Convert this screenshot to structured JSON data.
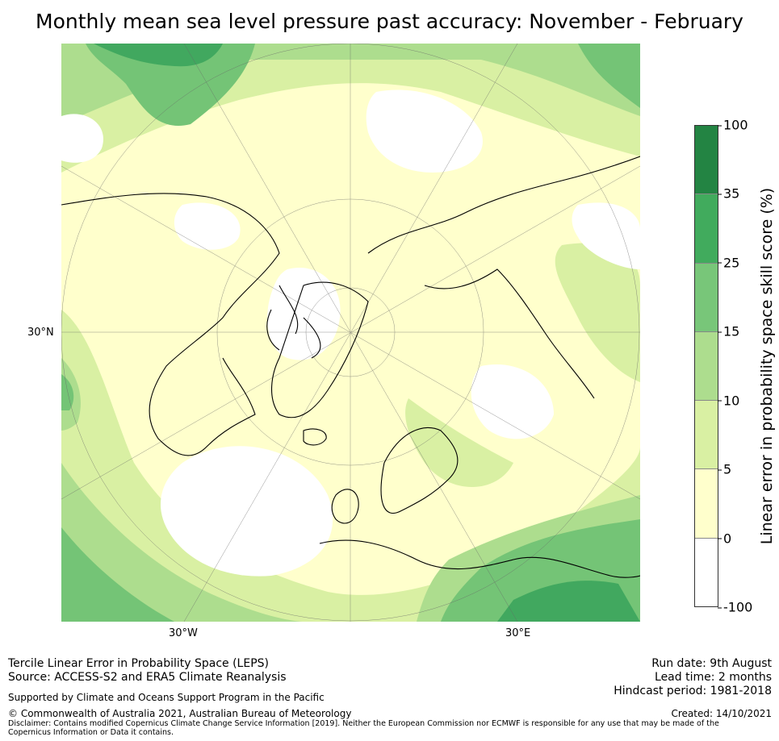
{
  "title": "Monthly mean sea level pressure past accuracy: November - February",
  "map": {
    "projection": "north-polar-stereographic",
    "labels": {
      "lat_30n": "30°N",
      "lon_30w": "30°W",
      "lon_30e": "30°E"
    },
    "colors": {
      "ocean_green_dark": "#41a85f",
      "green_mid": "#74c476",
      "green_light": "#addd8e",
      "green_pale": "#d9f0a3",
      "yellow_pale": "#ffffcc",
      "white": "#ffffff",
      "coast": "#000000"
    }
  },
  "colorbar": {
    "label": "Linear error in probability space skill score (%)",
    "ticks": [
      "100",
      "35",
      "25",
      "15",
      "10",
      "5",
      "0",
      "-100"
    ],
    "colors": [
      "#238443",
      "#41ab5d",
      "#78c679",
      "#addd8e",
      "#d9f0a3",
      "#ffffcc",
      "#ffffff"
    ]
  },
  "footer": {
    "line1": "Tercile Linear Error in Probability Space (LEPS)",
    "line2": "Source: ACCESS-S2 and ERA5 Climate Reanalysis",
    "supported": "Supported by Climate and Oceans Support Program in the Pacific",
    "copyright": "© Commonwealth of Australia 2021, Australian Bureau of Meteorology",
    "disclaimer": "Disclaimer: Contains modified Copernicus Climate Change Service Information [2019]. Neither the European Commission nor ECMWF is responsible for any use that may be made of the Copernicus Information or Data it contains.",
    "run_date": "Run date: 9th August",
    "lead_time": "Lead time: 2 months",
    "hindcast": "Hindcast period: 1981-2018",
    "created": "Created: 14/10/2021"
  }
}
